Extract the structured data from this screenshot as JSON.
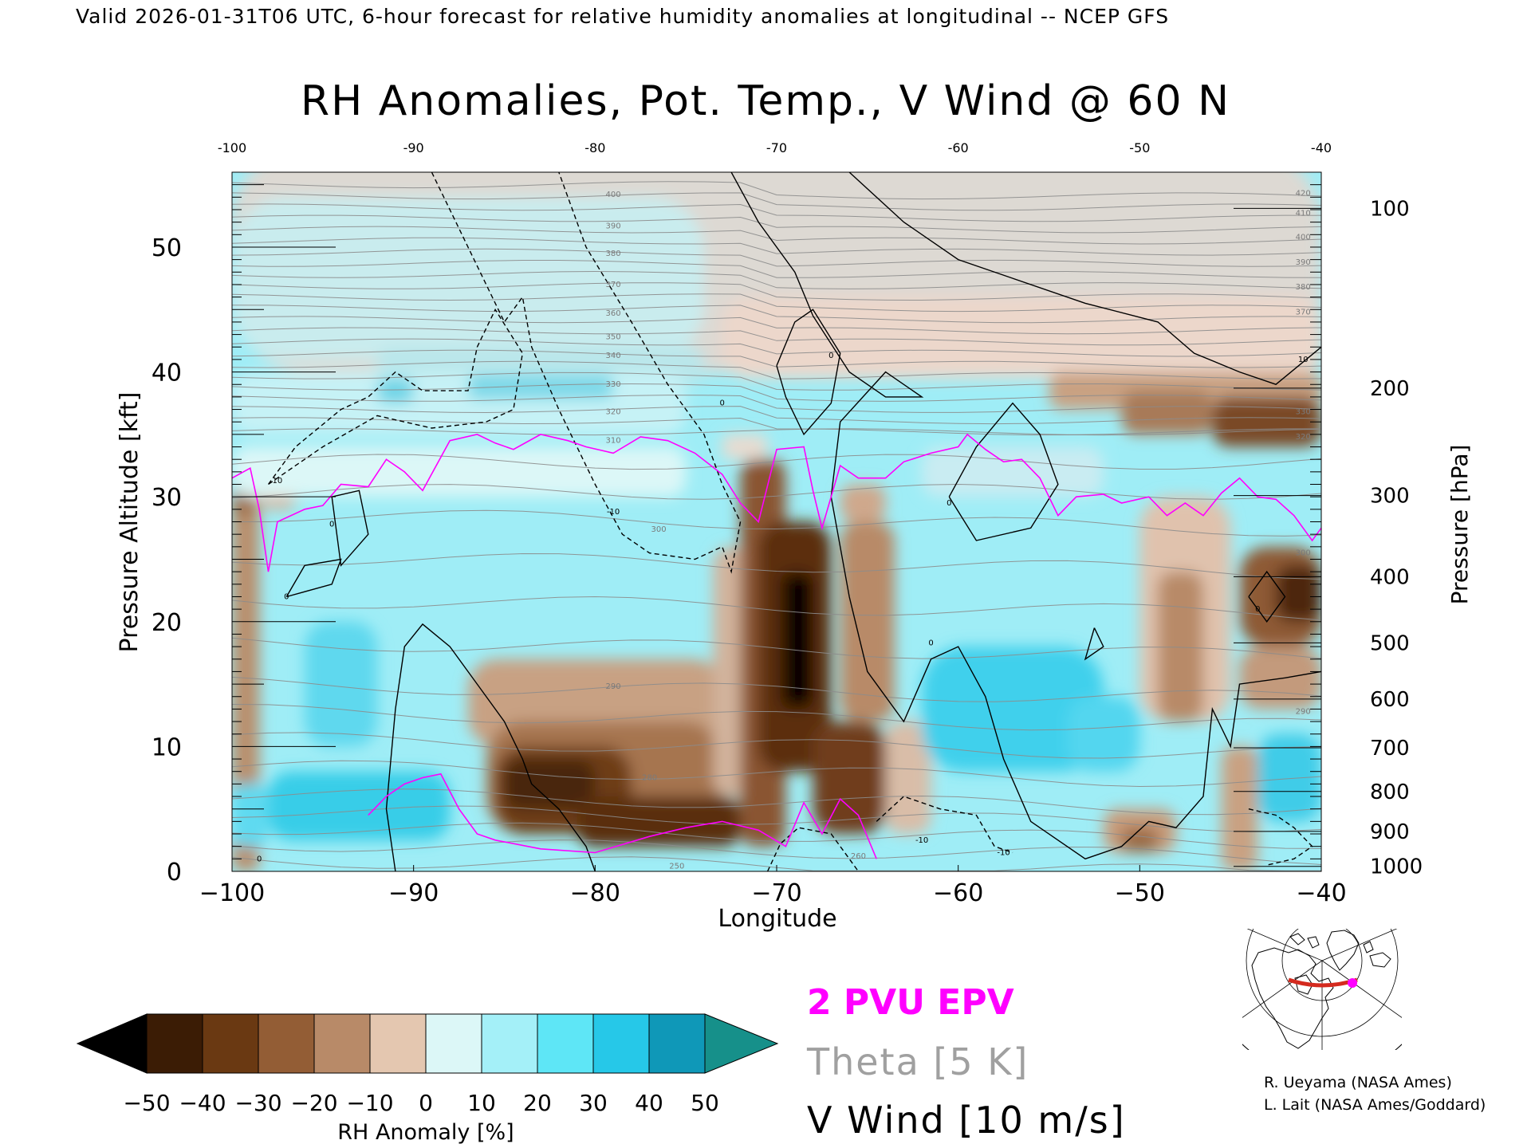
{
  "header": {
    "valid_line": "Valid 2026-01-31T06 UTC, 6-hour forecast for relative humidity anomalies at longitudinal -- NCEP GFS"
  },
  "chart_data": {
    "type": "heatmap",
    "title": "RH Anomalies, Pot. Temp., V Wind @ 60 N",
    "xlabel": "Longitude",
    "ylabel": "Pressure Altitude [kft]",
    "ylabel_right": "Pressure [hPa]",
    "xlim": [
      -100,
      -40
    ],
    "ylim": [
      0,
      56
    ],
    "x_ticks": [
      -100,
      -90,
      -80,
      -70,
      -60,
      -50,
      -40
    ],
    "x_tick_labels": [
      "−100",
      "−90",
      "−80",
      "−70",
      "−60",
      "−50",
      "−40"
    ],
    "top_tick_labels": [
      "-100",
      "-90",
      "-80",
      "-70",
      "-60",
      "-50",
      "-40"
    ],
    "y_ticks": [
      0,
      10,
      20,
      30,
      40,
      50
    ],
    "y_tick_labels": [
      "0",
      "10",
      "20",
      "30",
      "40",
      "50"
    ],
    "pressure_ticks": [
      {
        "hpa": "100",
        "kft": 53.1
      },
      {
        "hpa": "200",
        "kft": 38.7
      },
      {
        "hpa": "300",
        "kft": 30.1
      },
      {
        "hpa": "400",
        "kft": 23.6
      },
      {
        "hpa": "500",
        "kft": 18.3
      },
      {
        "hpa": "600",
        "kft": 13.8
      },
      {
        "hpa": "700",
        "kft": 9.9
      },
      {
        "hpa": "800",
        "kft": 6.4
      },
      {
        "hpa": "900",
        "kft": 3.2
      },
      {
        "hpa": "1000",
        "kft": 0.4
      }
    ],
    "theta_labels": [
      {
        "text": "250",
        "lon": -75.5,
        "kft": 0.4
      },
      {
        "text": "260",
        "lon": -65.5,
        "kft": 1.2
      },
      {
        "text": "280",
        "lon": -77.0,
        "kft": 7.5
      },
      {
        "text": "290",
        "lon": -79.0,
        "kft": 14.8
      },
      {
        "text": "290",
        "lon": -41.0,
        "kft": 12.8
      },
      {
        "text": "300",
        "lon": -76.5,
        "kft": 27.4
      },
      {
        "text": "300",
        "lon": -41.0,
        "kft": 25.5
      },
      {
        "text": "310",
        "lon": -79.0,
        "kft": 34.5
      },
      {
        "text": "320",
        "lon": -79.0,
        "kft": 36.8
      },
      {
        "text": "320",
        "lon": -41.0,
        "kft": 34.8
      },
      {
        "text": "330",
        "lon": -79.0,
        "kft": 39.0
      },
      {
        "text": "330",
        "lon": -41.0,
        "kft": 36.8
      },
      {
        "text": "340",
        "lon": -79.0,
        "kft": 41.3
      },
      {
        "text": "350",
        "lon": -79.0,
        "kft": 42.8
      },
      {
        "text": "360",
        "lon": -79.0,
        "kft": 44.7
      },
      {
        "text": "370",
        "lon": -79.0,
        "kft": 47.0
      },
      {
        "text": "380",
        "lon": -79.0,
        "kft": 49.5
      },
      {
        "text": "390",
        "lon": -79.0,
        "kft": 51.7
      },
      {
        "text": "400",
        "lon": -79.0,
        "kft": 54.2
      },
      {
        "text": "370",
        "lon": -41.0,
        "kft": 44.8
      },
      {
        "text": "380",
        "lon": -41.0,
        "kft": 46.8
      },
      {
        "text": "390",
        "lon": -41.0,
        "kft": 48.8
      },
      {
        "text": "400",
        "lon": -41.0,
        "kft": 50.8
      },
      {
        "text": "410",
        "lon": -41.0,
        "kft": 52.7
      },
      {
        "text": "420",
        "lon": -41.0,
        "kft": 54.3
      }
    ],
    "wind_labels": [
      {
        "text": "0",
        "lon": -98.5,
        "kft": 1.0
      },
      {
        "text": "0",
        "lon": -97.0,
        "kft": 22.0
      },
      {
        "text": "0",
        "lon": -94.5,
        "kft": 27.8
      },
      {
        "text": "10",
        "lon": -97.5,
        "kft": 31.3
      },
      {
        "text": "-10",
        "lon": -79.0,
        "kft": 28.8
      },
      {
        "text": "0",
        "lon": -67.0,
        "kft": 41.3
      },
      {
        "text": "0",
        "lon": -73.0,
        "kft": 37.5
      },
      {
        "text": "0",
        "lon": -60.5,
        "kft": 29.5
      },
      {
        "text": "0",
        "lon": -61.5,
        "kft": 18.3
      },
      {
        "text": "10",
        "lon": -41.0,
        "kft": 41.0
      },
      {
        "text": "0",
        "lon": -43.5,
        "kft": 21.0
      },
      {
        "text": "-10",
        "lon": -57.5,
        "kft": 1.5
      },
      {
        "text": "-10",
        "lon": -62.0,
        "kft": 2.5
      }
    ],
    "pv_2pvu_upper": [
      [
        -100,
        31.5
      ],
      [
        -99,
        32.3
      ],
      [
        -98.5,
        29.0
      ],
      [
        -98,
        24.0
      ],
      [
        -97.5,
        28.0
      ],
      [
        -96,
        29.0
      ],
      [
        -95,
        29.3
      ],
      [
        -94,
        31.0
      ],
      [
        -92.5,
        30.8
      ],
      [
        -91.5,
        33.0
      ],
      [
        -90.5,
        32.0
      ],
      [
        -89.5,
        30.5
      ],
      [
        -88,
        34.5
      ],
      [
        -86.5,
        35.0
      ],
      [
        -85.5,
        34.3
      ],
      [
        -84.5,
        33.8
      ],
      [
        -83,
        35.0
      ],
      [
        -81.5,
        34.5
      ],
      [
        -80.5,
        34.0
      ],
      [
        -79,
        33.5
      ],
      [
        -77.5,
        34.8
      ],
      [
        -76,
        34.5
      ],
      [
        -74.5,
        33.5
      ],
      [
        -73,
        31.8
      ],
      [
        -72,
        29.5
      ],
      [
        -71,
        28.0
      ],
      [
        -70,
        33.8
      ],
      [
        -68.5,
        34.0
      ],
      [
        -68,
        30.5
      ],
      [
        -67.5,
        27.5
      ],
      [
        -66.5,
        32.5
      ],
      [
        -65.5,
        31.5
      ],
      [
        -64,
        31.5
      ],
      [
        -63,
        32.8
      ],
      [
        -61.5,
        33.5
      ],
      [
        -60,
        34.0
      ],
      [
        -59.5,
        35.0
      ],
      [
        -58.5,
        33.8
      ],
      [
        -57.5,
        32.8
      ],
      [
        -56.5,
        33.0
      ],
      [
        -55.5,
        31.5
      ],
      [
        -54.5,
        28.5
      ],
      [
        -53.5,
        30.0
      ],
      [
        -52,
        30.2
      ],
      [
        -51,
        29.5
      ],
      [
        -49.5,
        30.0
      ],
      [
        -48.5,
        28.5
      ],
      [
        -47.5,
        29.5
      ],
      [
        -46.5,
        28.5
      ],
      [
        -45.5,
        30.3
      ],
      [
        -44.5,
        31.5
      ],
      [
        -43.5,
        30.0
      ],
      [
        -42.5,
        29.8
      ],
      [
        -41.5,
        28.5
      ],
      [
        -40.5,
        26.5
      ],
      [
        -40,
        27.5
      ]
    ],
    "pv_2pvu_lower": [
      [
        -92.5,
        4.5
      ],
      [
        -91.5,
        6.0
      ],
      [
        -90.5,
        7.0
      ],
      [
        -89.5,
        7.5
      ],
      [
        -88.5,
        7.8
      ],
      [
        -87.5,
        5.0
      ],
      [
        -86.5,
        3.0
      ],
      [
        -85.5,
        2.5
      ],
      [
        -83,
        1.8
      ],
      [
        -80,
        1.5
      ],
      [
        -77,
        2.8
      ],
      [
        -75,
        3.5
      ],
      [
        -73,
        4.0
      ],
      [
        -71,
        3.3
      ],
      [
        -69.5,
        2.0
      ],
      [
        -68.5,
        5.5
      ],
      [
        -67.5,
        3.0
      ],
      [
        -66.5,
        5.8
      ],
      [
        -65.5,
        4.5
      ],
      [
        -64.5,
        1.0
      ]
    ],
    "colorbar": {
      "label": "RH Anomaly [%]",
      "levels": [
        -50,
        -40,
        -30,
        -20,
        -10,
        0,
        10,
        20,
        30,
        40,
        50
      ],
      "tick_labels": [
        "−50",
        "−40",
        "−30",
        "−20",
        "−10",
        "0",
        "10",
        "20",
        "30",
        "40",
        "50"
      ],
      "colors": [
        "#000000",
        "#3b1c05",
        "#6a3912",
        "#935d35",
        "#b88a68",
        "#e4c7b0",
        "#dcf7f7",
        "#a4f0f8",
        "#5ee6f6",
        "#26c8e8",
        "#0f98b8",
        "#0a7066",
        "#16908a"
      ]
    },
    "legend": [
      {
        "text": "2 PVU EPV",
        "color": "#ff00ff"
      },
      {
        "text": "Theta [5 K]",
        "color": "#a0a0a0"
      },
      {
        "text": "V Wind [10 m/s]",
        "color": "#000000"
      }
    ]
  },
  "credits": {
    "line1": "R. Ueyama (NASA Ames)",
    "line2": "L. Lait (NASA Ames/Goddard)"
  }
}
